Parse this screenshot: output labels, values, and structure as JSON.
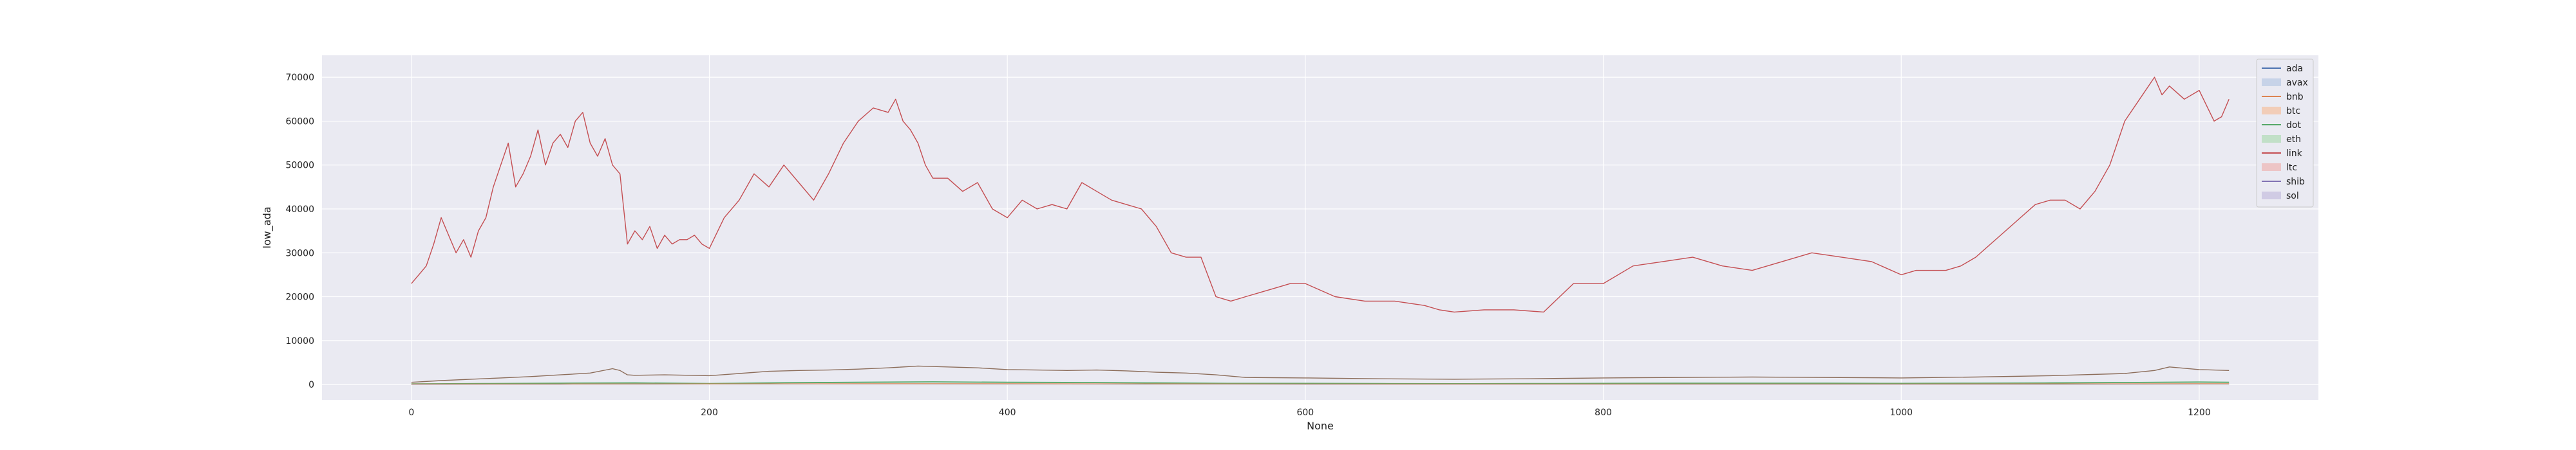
{
  "chart_data": {
    "type": "line",
    "xlabel": "None",
    "ylabel": "low_ada",
    "xlim": [
      -60,
      1280
    ],
    "ylim": [
      -3500,
      75000
    ],
    "xticks": [
      0,
      200,
      400,
      600,
      800,
      1000,
      1200
    ],
    "yticks": [
      0,
      10000,
      20000,
      30000,
      40000,
      50000,
      60000,
      70000
    ],
    "grid": true,
    "legend_position": "top-right",
    "legend": [
      {
        "label": "ada",
        "kind": "line",
        "color": "#4c72b0"
      },
      {
        "label": "avax",
        "kind": "band",
        "color": "#c7d3e8"
      },
      {
        "label": "bnb",
        "kind": "line",
        "color": "#dd8452"
      },
      {
        "label": "btc",
        "kind": "band",
        "color": "#f2cdb8"
      },
      {
        "label": "dot",
        "kind": "line",
        "color": "#55a868"
      },
      {
        "label": "eth",
        "kind": "band",
        "color": "#c2e0c8"
      },
      {
        "label": "link",
        "kind": "line",
        "color": "#c44e52"
      },
      {
        "label": "ltc",
        "kind": "band",
        "color": "#edc5c6"
      },
      {
        "label": "shib",
        "kind": "line",
        "color": "#8172b3"
      },
      {
        "label": "sol",
        "kind": "band",
        "color": "#d0cbe4"
      }
    ],
    "series": [
      {
        "color": "#c44e52",
        "width": 1.4,
        "x": [
          0,
          5,
          10,
          15,
          20,
          25,
          30,
          35,
          40,
          45,
          50,
          55,
          60,
          65,
          70,
          75,
          80,
          85,
          90,
          95,
          100,
          105,
          110,
          115,
          120,
          125,
          130,
          135,
          140,
          145,
          150,
          155,
          160,
          165,
          170,
          175,
          180,
          185,
          190,
          195,
          200,
          210,
          220,
          230,
          240,
          250,
          260,
          270,
          280,
          290,
          300,
          310,
          320,
          325,
          330,
          335,
          340,
          345,
          350,
          360,
          370,
          380,
          390,
          400,
          410,
          420,
          430,
          440,
          450,
          460,
          470,
          480,
          490,
          500,
          510,
          520,
          530,
          540,
          550,
          560,
          570,
          580,
          590,
          600,
          620,
          640,
          660,
          680,
          690,
          700,
          720,
          740,
          760,
          780,
          800,
          820,
          840,
          860,
          880,
          900,
          920,
          940,
          960,
          980,
          1000,
          1010,
          1020,
          1030,
          1040,
          1050,
          1060,
          1070,
          1080,
          1090,
          1100,
          1110,
          1120,
          1130,
          1140,
          1150,
          1160,
          1170,
          1175,
          1180,
          1190,
          1200,
          1210,
          1215,
          1220
        ],
        "y": [
          23000,
          25000,
          27000,
          32000,
          38000,
          34000,
          30000,
          33000,
          29000,
          35000,
          38000,
          45000,
          50000,
          55000,
          45000,
          48000,
          52000,
          58000,
          50000,
          55000,
          57000,
          54000,
          60000,
          62000,
          55000,
          52000,
          56000,
          50000,
          48000,
          32000,
          35000,
          33000,
          36000,
          31000,
          34000,
          32000,
          33000,
          33000,
          34000,
          32000,
          31000,
          38000,
          42000,
          48000,
          45000,
          50000,
          46000,
          42000,
          48000,
          55000,
          60000,
          63000,
          62000,
          65000,
          60000,
          58000,
          55000,
          50000,
          47000,
          47000,
          44000,
          46000,
          40000,
          38000,
          42000,
          40000,
          41000,
          40000,
          46000,
          44000,
          42000,
          41000,
          40000,
          36000,
          30000,
          29000,
          29000,
          20000,
          19000,
          20000,
          21000,
          22000,
          23000,
          23000,
          20000,
          19000,
          19000,
          18000,
          17000,
          16500,
          17000,
          17000,
          16500,
          23000,
          23000,
          27000,
          28000,
          29000,
          27000,
          26000,
          28000,
          30000,
          29000,
          28000,
          25000,
          26000,
          26000,
          26000,
          27000,
          29000,
          32000,
          35000,
          38000,
          41000,
          42000,
          42000,
          40000,
          44000,
          50000,
          60000,
          65000,
          70000,
          66000,
          68000,
          65000,
          67000,
          60000,
          61000,
          65000
        ]
      },
      {
        "color": "#8c6d5a",
        "width": 1.4,
        "x": [
          0,
          20,
          40,
          60,
          80,
          100,
          120,
          135,
          140,
          145,
          150,
          170,
          200,
          220,
          240,
          260,
          280,
          300,
          320,
          340,
          360,
          380,
          400,
          420,
          440,
          460,
          480,
          500,
          520,
          540,
          560,
          600,
          650,
          700,
          750,
          800,
          850,
          900,
          950,
          1000,
          1050,
          1100,
          1150,
          1170,
          1180,
          1200,
          1220
        ],
        "y": [
          500,
          900,
          1200,
          1500,
          1800,
          2200,
          2600,
          3600,
          3200,
          2200,
          2100,
          2200,
          2000,
          2500,
          3000,
          3200,
          3300,
          3500,
          3800,
          4200,
          4000,
          3800,
          3400,
          3300,
          3200,
          3300,
          3100,
          2800,
          2600,
          2200,
          1600,
          1500,
          1300,
          1200,
          1300,
          1500,
          1600,
          1700,
          1600,
          1500,
          1700,
          2000,
          2500,
          3200,
          4000,
          3400,
          3200
        ]
      },
      {
        "color": "#55a868",
        "width": 1.8,
        "x": [
          0,
          50,
          100,
          150,
          200,
          250,
          300,
          350,
          400,
          450,
          500,
          550,
          600,
          650,
          700,
          750,
          800,
          850,
          900,
          950,
          1000,
          1050,
          1100,
          1150,
          1200,
          1220
        ],
        "y": [
          150,
          200,
          300,
          350,
          200,
          400,
          500,
          600,
          500,
          450,
          350,
          250,
          250,
          200,
          180,
          200,
          250,
          280,
          300,
          280,
          250,
          300,
          350,
          450,
          550,
          500
        ]
      },
      {
        "color": "#4c72b0",
        "width": 1.2,
        "x": [
          0,
          100,
          200,
          300,
          400,
          500,
          600,
          700,
          800,
          900,
          1000,
          1100,
          1200,
          1220
        ],
        "y": [
          50,
          80,
          100,
          120,
          110,
          90,
          70,
          60,
          60,
          70,
          70,
          80,
          100,
          100
        ]
      },
      {
        "color": "#dd8452",
        "width": 1.2,
        "x": [
          0,
          100,
          200,
          300,
          400,
          500,
          600,
          700,
          800,
          900,
          1000,
          1100,
          1200,
          1220
        ],
        "y": [
          100,
          120,
          150,
          180,
          170,
          150,
          120,
          110,
          110,
          120,
          120,
          140,
          180,
          170
        ]
      }
    ]
  }
}
